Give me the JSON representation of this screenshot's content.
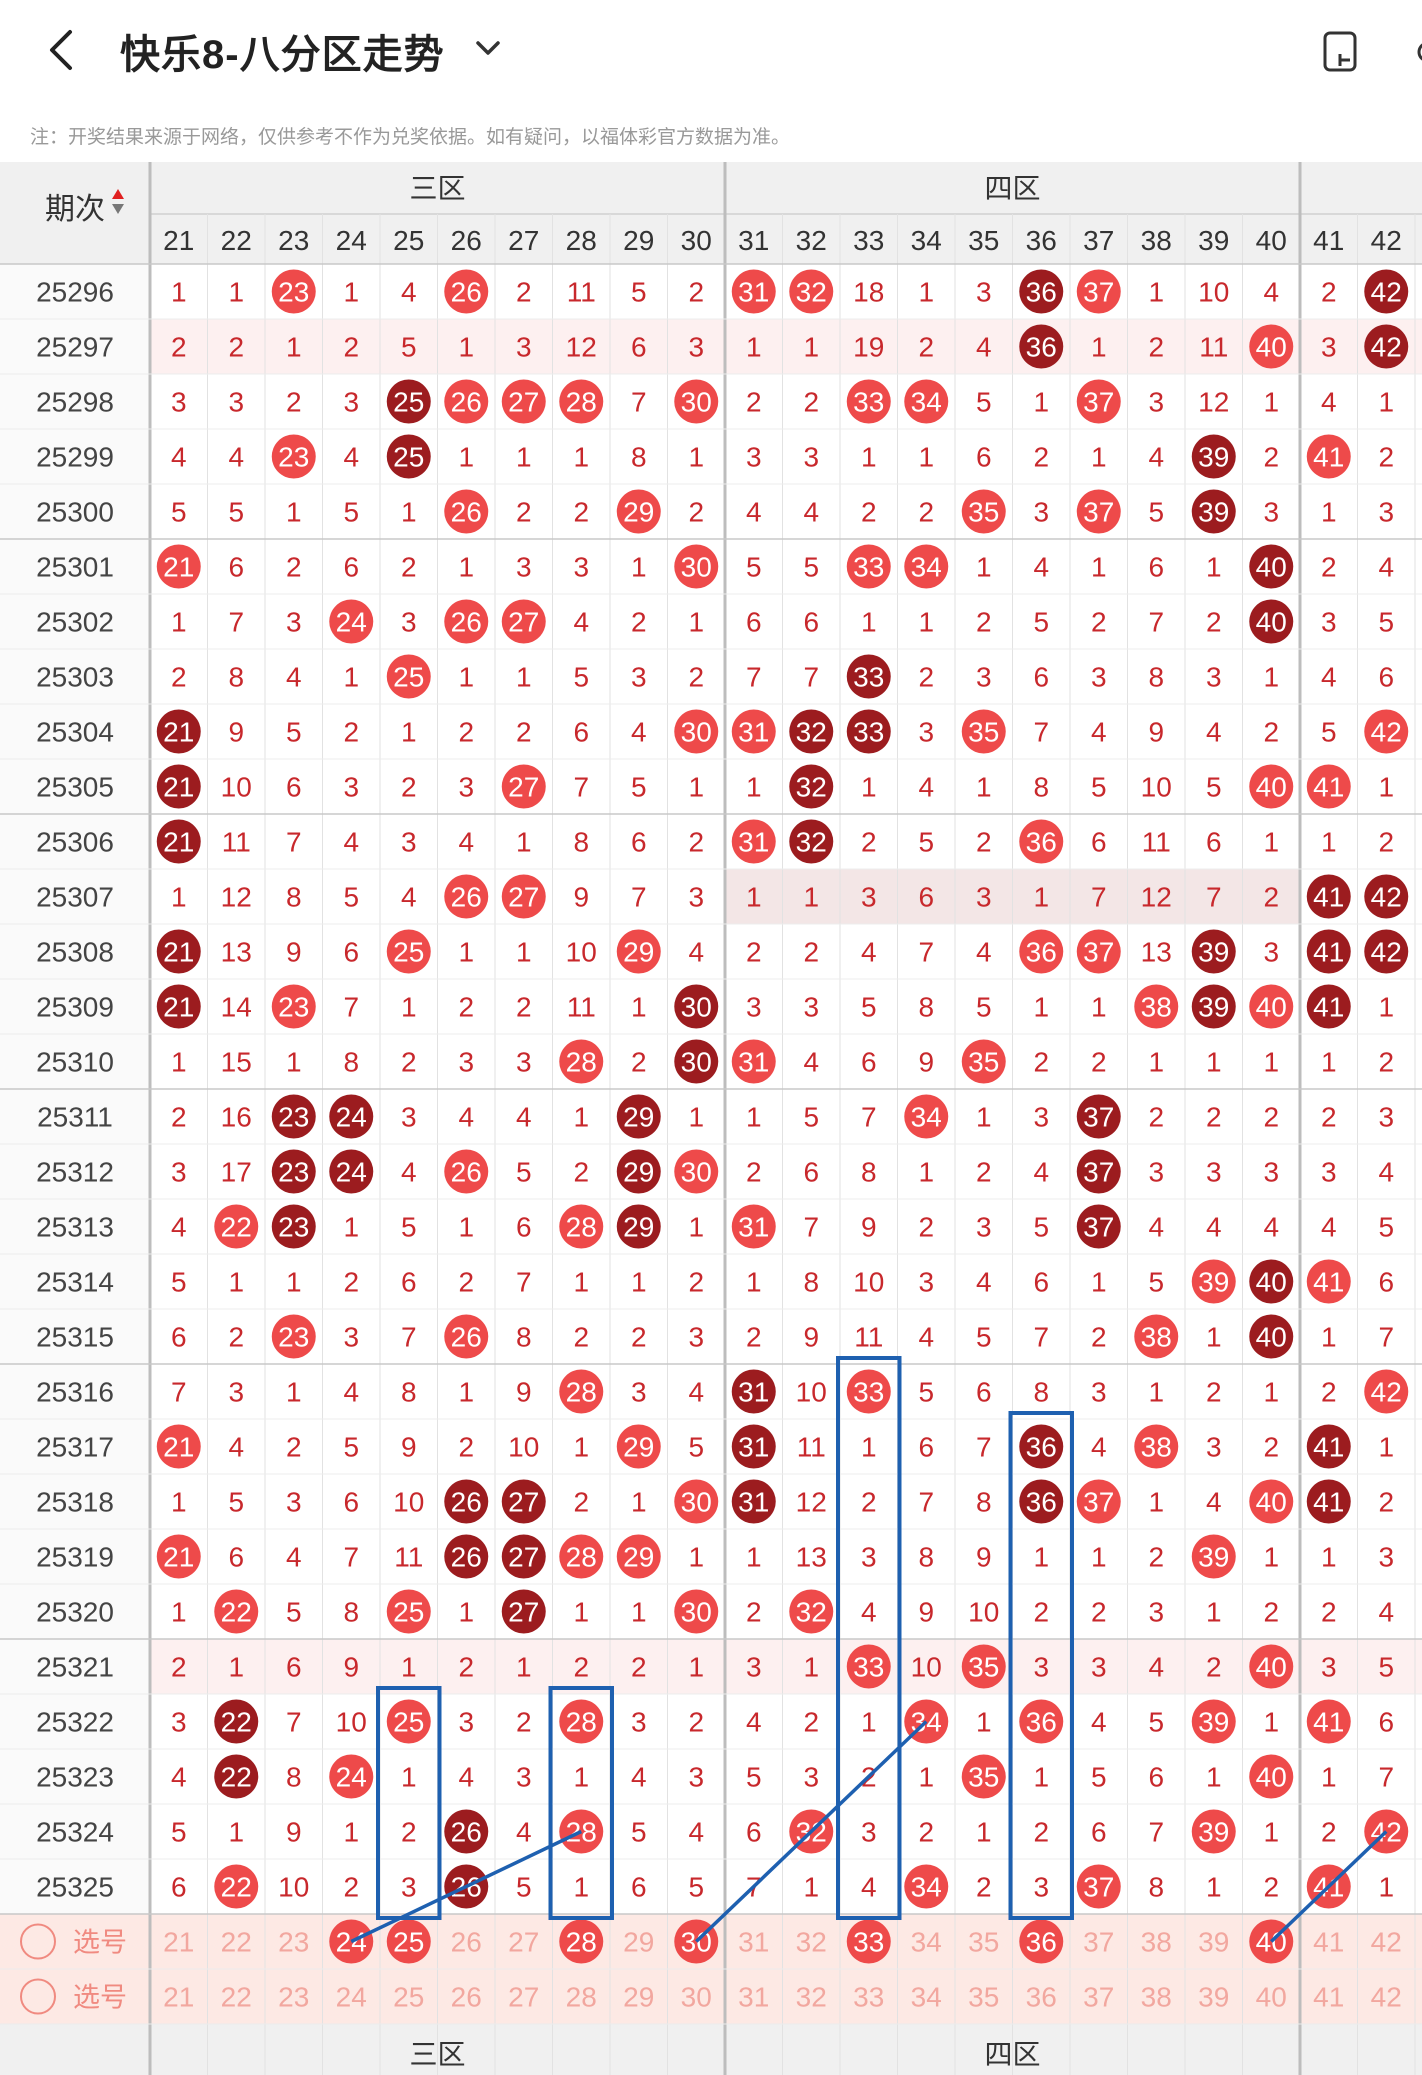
{
  "header": {
    "back_label": "<",
    "title": "快乐8-八分区走势",
    "dropdown_icon": "chevron-down-icon",
    "right_icon": "device-icon"
  },
  "note": "注：开奖结果来源于网络，仅供参考不作为兑奖依据。如有疑问，以福体彩官方数据为准。",
  "table": {
    "period_header": "期次",
    "zones": [
      {
        "label": "三区",
        "numbers": [
          21,
          22,
          23,
          24,
          25,
          26,
          27,
          28,
          29,
          30
        ]
      },
      {
        "label": "四区",
        "numbers": [
          31,
          32,
          33,
          34,
          35,
          36,
          37,
          38,
          39,
          40
        ]
      },
      {
        "label": "",
        "numbers": [
          41,
          42
        ]
      }
    ],
    "columns": [
      21,
      22,
      23,
      24,
      25,
      26,
      27,
      28,
      29,
      30,
      31,
      32,
      33,
      34,
      35,
      36,
      37,
      38,
      39,
      40,
      41,
      42
    ],
    "rows": [
      {
        "period": "25296",
        "cells": [
          "1",
          "1",
          "23",
          "1",
          "4",
          "26",
          "2",
          "11",
          "5",
          "2",
          "31",
          "32",
          "18",
          "1",
          "3",
          "36",
          "37",
          "1",
          "10",
          "4",
          "2",
          "42"
        ]
      },
      {
        "period": "25297",
        "cells": [
          "2",
          "2",
          "1",
          "2",
          "5",
          "1",
          "3",
          "12",
          "6",
          "3",
          "1",
          "1",
          "19",
          "2",
          "4",
          "36",
          "1",
          "2",
          "11",
          "40",
          "3",
          "42"
        ]
      },
      {
        "period": "25298",
        "cells": [
          "3",
          "3",
          "2",
          "3",
          "25",
          "26",
          "27",
          "28",
          "7",
          "30",
          "2",
          "2",
          "33",
          "34",
          "5",
          "1",
          "37",
          "3",
          "12",
          "1",
          "4",
          "1"
        ]
      },
      {
        "period": "25299",
        "cells": [
          "4",
          "4",
          "23",
          "4",
          "25",
          "1",
          "1",
          "1",
          "8",
          "1",
          "3",
          "3",
          "1",
          "1",
          "6",
          "2",
          "1",
          "4",
          "39",
          "2",
          "41",
          "2"
        ]
      },
      {
        "period": "25300",
        "cells": [
          "5",
          "5",
          "1",
          "5",
          "1",
          "26",
          "2",
          "2",
          "29",
          "2",
          "4",
          "4",
          "2",
          "2",
          "35",
          "3",
          "37",
          "5",
          "39",
          "3",
          "1",
          "3"
        ]
      },
      {
        "period": "25301",
        "cells": [
          "21",
          "6",
          "2",
          "6",
          "2",
          "1",
          "3",
          "3",
          "1",
          "30",
          "5",
          "5",
          "33",
          "34",
          "1",
          "4",
          "1",
          "6",
          "1",
          "40",
          "2",
          "4"
        ]
      },
      {
        "period": "25302",
        "cells": [
          "1",
          "7",
          "3",
          "24",
          "3",
          "26",
          "27",
          "4",
          "2",
          "1",
          "6",
          "6",
          "1",
          "1",
          "2",
          "5",
          "2",
          "7",
          "2",
          "40",
          "3",
          "5"
        ]
      },
      {
        "period": "25303",
        "cells": [
          "2",
          "8",
          "4",
          "1",
          "25",
          "1",
          "1",
          "5",
          "3",
          "2",
          "7",
          "7",
          "33",
          "2",
          "3",
          "6",
          "3",
          "8",
          "3",
          "1",
          "4",
          "6"
        ]
      },
      {
        "period": "25304",
        "cells": [
          "21",
          "9",
          "5",
          "2",
          "1",
          "2",
          "2",
          "6",
          "4",
          "30",
          "31",
          "32",
          "33",
          "3",
          "35",
          "7",
          "4",
          "9",
          "4",
          "2",
          "5",
          "42"
        ]
      },
      {
        "period": "25305",
        "cells": [
          "21",
          "10",
          "6",
          "3",
          "2",
          "3",
          "27",
          "7",
          "5",
          "1",
          "1",
          "32",
          "1",
          "4",
          "1",
          "8",
          "5",
          "10",
          "5",
          "40",
          "41",
          "1"
        ]
      },
      {
        "period": "25306",
        "cells": [
          "21",
          "11",
          "7",
          "4",
          "3",
          "4",
          "1",
          "8",
          "6",
          "2",
          "31",
          "32",
          "2",
          "5",
          "2",
          "36",
          "6",
          "11",
          "6",
          "1",
          "1",
          "2"
        ]
      },
      {
        "period": "25307",
        "cells": [
          "1",
          "12",
          "8",
          "5",
          "4",
          "26",
          "27",
          "9",
          "7",
          "3",
          "1",
          "1",
          "3",
          "6",
          "3",
          "1",
          "7",
          "12",
          "7",
          "2",
          "41",
          "42"
        ]
      },
      {
        "period": "25308",
        "cells": [
          "21",
          "13",
          "9",
          "6",
          "25",
          "1",
          "1",
          "10",
          "29",
          "4",
          "2",
          "2",
          "4",
          "7",
          "4",
          "36",
          "37",
          "13",
          "39",
          "3",
          "41",
          "42"
        ]
      },
      {
        "period": "25309",
        "cells": [
          "21",
          "14",
          "23",
          "7",
          "1",
          "2",
          "2",
          "11",
          "1",
          "30",
          "3",
          "3",
          "5",
          "8",
          "5",
          "1",
          "1",
          "38",
          "39",
          "40",
          "41",
          "1"
        ]
      },
      {
        "period": "25310",
        "cells": [
          "1",
          "15",
          "1",
          "8",
          "2",
          "3",
          "3",
          "28",
          "2",
          "30",
          "31",
          "4",
          "6",
          "9",
          "35",
          "2",
          "2",
          "1",
          "1",
          "1",
          "1",
          "2"
        ]
      },
      {
        "period": "25311",
        "cells": [
          "2",
          "16",
          "23",
          "24",
          "3",
          "4",
          "4",
          "1",
          "29",
          "1",
          "1",
          "5",
          "7",
          "34",
          "1",
          "3",
          "37",
          "2",
          "2",
          "2",
          "2",
          "3"
        ]
      },
      {
        "period": "25312",
        "cells": [
          "3",
          "17",
          "23",
          "24",
          "4",
          "26",
          "5",
          "2",
          "29",
          "30",
          "2",
          "6",
          "8",
          "1",
          "2",
          "4",
          "37",
          "3",
          "3",
          "3",
          "3",
          "4"
        ]
      },
      {
        "period": "25313",
        "cells": [
          "4",
          "22",
          "23",
          "1",
          "5",
          "1",
          "6",
          "28",
          "29",
          "1",
          "31",
          "7",
          "9",
          "2",
          "3",
          "5",
          "37",
          "4",
          "4",
          "4",
          "4",
          "5"
        ]
      },
      {
        "period": "25314",
        "cells": [
          "5",
          "1",
          "1",
          "2",
          "6",
          "2",
          "7",
          "1",
          "1",
          "2",
          "1",
          "8",
          "10",
          "3",
          "4",
          "6",
          "1",
          "5",
          "39",
          "40",
          "41",
          "6"
        ]
      },
      {
        "period": "25315",
        "cells": [
          "6",
          "2",
          "23",
          "3",
          "7",
          "26",
          "8",
          "2",
          "2",
          "3",
          "2",
          "9",
          "11",
          "4",
          "5",
          "7",
          "2",
          "38",
          "1",
          "40",
          "1",
          "7"
        ]
      },
      {
        "period": "25316",
        "cells": [
          "7",
          "3",
          "1",
          "4",
          "8",
          "1",
          "9",
          "28",
          "3",
          "4",
          "31",
          "10",
          "33",
          "5",
          "6",
          "8",
          "3",
          "1",
          "2",
          "1",
          "2",
          "42"
        ]
      },
      {
        "period": "25317",
        "cells": [
          "21",
          "4",
          "2",
          "5",
          "9",
          "2",
          "10",
          "1",
          "29",
          "5",
          "31",
          "11",
          "1",
          "6",
          "7",
          "36",
          "4",
          "38",
          "3",
          "2",
          "41",
          "1"
        ]
      },
      {
        "period": "25318",
        "cells": [
          "1",
          "5",
          "3",
          "6",
          "10",
          "26",
          "27",
          "2",
          "1",
          "30",
          "31",
          "12",
          "2",
          "7",
          "8",
          "36",
          "37",
          "1",
          "4",
          "40",
          "41",
          "2"
        ]
      },
      {
        "period": "25319",
        "cells": [
          "21",
          "6",
          "4",
          "7",
          "11",
          "26",
          "27",
          "28",
          "29",
          "1",
          "1",
          "13",
          "3",
          "8",
          "9",
          "1",
          "1",
          "2",
          "39",
          "1",
          "1",
          "3"
        ]
      },
      {
        "period": "25320",
        "cells": [
          "1",
          "22",
          "5",
          "8",
          "25",
          "1",
          "27",
          "1",
          "1",
          "30",
          "2",
          "32",
          "4",
          "9",
          "10",
          "2",
          "2",
          "3",
          "1",
          "2",
          "2",
          "4"
        ]
      },
      {
        "period": "25321",
        "cells": [
          "2",
          "1",
          "6",
          "9",
          "1",
          "2",
          "1",
          "2",
          "2",
          "1",
          "3",
          "1",
          "33",
          "10",
          "35",
          "3",
          "3",
          "4",
          "2",
          "40",
          "3",
          "5"
        ]
      },
      {
        "period": "25322",
        "cells": [
          "3",
          "22",
          "7",
          "10",
          "25",
          "3",
          "2",
          "28",
          "3",
          "2",
          "4",
          "2",
          "1",
          "34",
          "1",
          "36",
          "4",
          "5",
          "39",
          "1",
          "41",
          "6"
        ]
      },
      {
        "period": "25323",
        "cells": [
          "4",
          "22",
          "8",
          "24",
          "1",
          "4",
          "3",
          "1",
          "4",
          "3",
          "5",
          "3",
          "2",
          "1",
          "35",
          "1",
          "5",
          "6",
          "1",
          "40",
          "1",
          "7"
        ]
      },
      {
        "period": "25324",
        "cells": [
          "5",
          "1",
          "9",
          "1",
          "2",
          "26",
          "4",
          "28",
          "5",
          "4",
          "6",
          "32",
          "3",
          "2",
          "1",
          "2",
          "6",
          "7",
          "39",
          "1",
          "2",
          "42"
        ]
      },
      {
        "period": "25325",
        "cells": [
          "6",
          "22",
          "10",
          "2",
          "3",
          "26",
          "5",
          "1",
          "6",
          "5",
          "7",
          "1",
          "4",
          "34",
          "2",
          "3",
          "37",
          "8",
          "1",
          "2",
          "41",
          "1"
        ]
      }
    ],
    "select_rows": [
      {
        "label": "选号",
        "cells": [
          "21",
          "22",
          "23",
          "24",
          "25",
          "26",
          "27",
          "28",
          "29",
          "30",
          "31",
          "32",
          "33",
          "34",
          "35",
          "36",
          "37",
          "38",
          "39",
          "40",
          "41",
          "42"
        ]
      },
      {
        "label": "选号",
        "cells": [
          "21",
          "22",
          "23",
          "24",
          "25",
          "26",
          "27",
          "28",
          "29",
          "30",
          "31",
          "32",
          "33",
          "34",
          "35",
          "36",
          "37",
          "38",
          "39",
          "40",
          "41",
          "42"
        ]
      }
    ],
    "selected_numbers": [
      "24",
      "25",
      "28",
      "30",
      "33",
      "36",
      "40"
    ],
    "footer_zones": [
      "三区",
      "四区"
    ],
    "sort_icon": "sort-arrows-icon",
    "radio_icon": "radio-circle-icon"
  },
  "colors": {
    "hit": "#ee4a4a",
    "hit_dark": "#9c1c1f",
    "miss_text": "#c8282c",
    "annotation": "#1e60b0",
    "header_bg": "#f0f0f0",
    "row_tint": "#fdf0f0",
    "select_bg": "#fde9e4"
  }
}
